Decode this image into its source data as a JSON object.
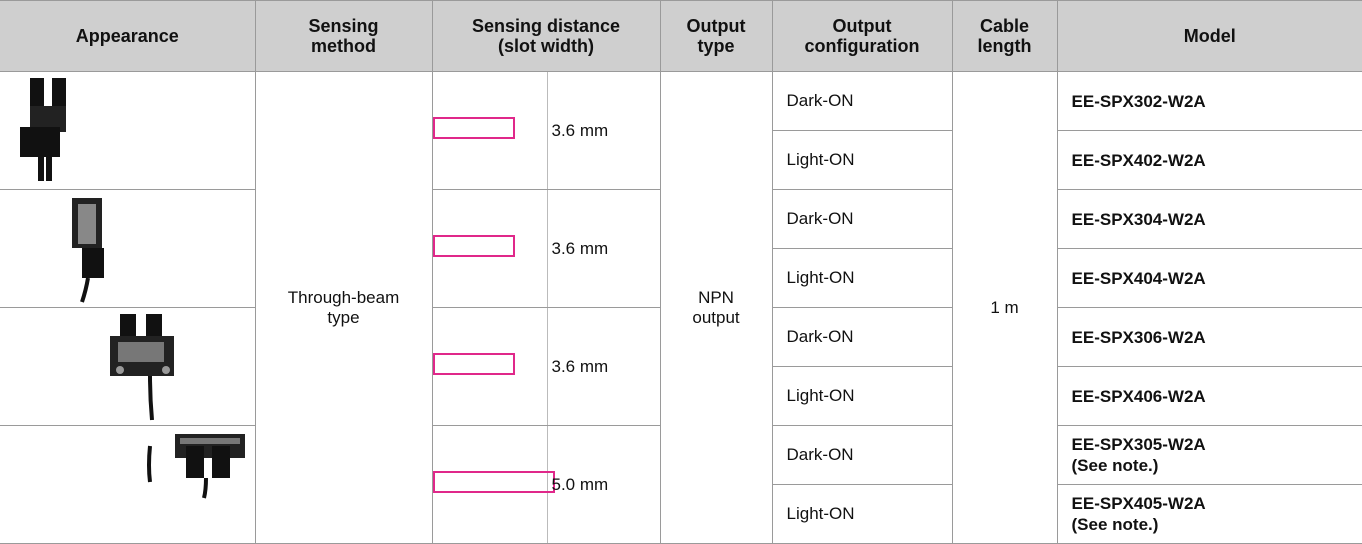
{
  "table": {
    "headers": {
      "appearance": "Appearance",
      "sensing_method": "Sensing\nmethod",
      "sensing_distance": "Sensing distance\n(slot width)",
      "output_type": "Output\ntype",
      "output_configuration": "Output\nconfiguration",
      "cable_length": "Cable\nlength",
      "model": "Model"
    },
    "sensing_method": "Through-beam\ntype",
    "output_type": "NPN\noutput",
    "cable_length": "1 m",
    "groups": [
      {
        "sensing_distance": "3.6 mm",
        "rows": [
          {
            "output_configuration": "Dark-ON",
            "model": "EE-SPX302-W2A"
          },
          {
            "output_configuration": "Light-ON",
            "model": "EE-SPX402-W2A"
          }
        ]
      },
      {
        "sensing_distance": "3.6 mm",
        "rows": [
          {
            "output_configuration": "Dark-ON",
            "model": "EE-SPX304-W2A"
          },
          {
            "output_configuration": "Light-ON",
            "model": "EE-SPX404-W2A"
          }
        ]
      },
      {
        "sensing_distance": "3.6 mm",
        "rows": [
          {
            "output_configuration": "Dark-ON",
            "model": "EE-SPX306-W2A"
          },
          {
            "output_configuration": "Light-ON",
            "model": "EE-SPX406-W2A"
          }
        ]
      },
      {
        "sensing_distance": "5.0 mm",
        "rows": [
          {
            "output_configuration": "Dark-ON",
            "model": "EE-SPX305-W2A\n(See note.)"
          },
          {
            "output_configuration": "Light-ON",
            "model": "EE-SPX405-W2A\n(See note.)"
          }
        ]
      }
    ]
  }
}
